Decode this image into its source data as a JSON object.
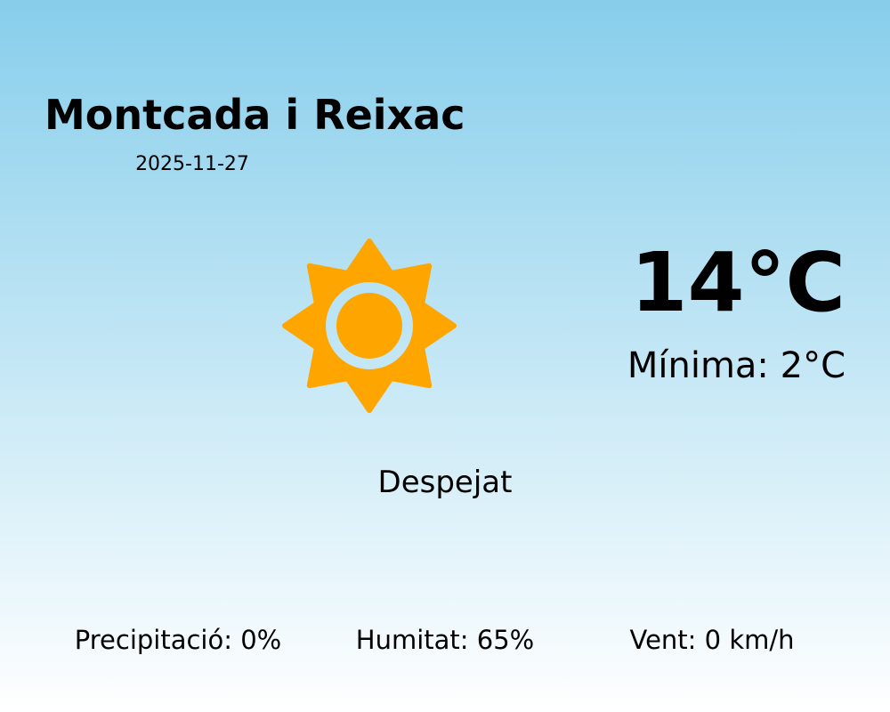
{
  "location": {
    "city": "Montcada i Reixac",
    "date": "2025-11-27"
  },
  "current": {
    "temperature": "14°C",
    "minimum": "Mínima: 2°C",
    "condition": "Despejat",
    "icon": "sun-icon"
  },
  "stats": {
    "precipitation": "Precipitació: 0%",
    "humidity": "Humitat: 65%",
    "wind": "Vent: 0 km/h"
  },
  "colors": {
    "sun": "#ffa500",
    "sky_top": "#87ceeb",
    "sky_bottom": "#ffffff"
  }
}
